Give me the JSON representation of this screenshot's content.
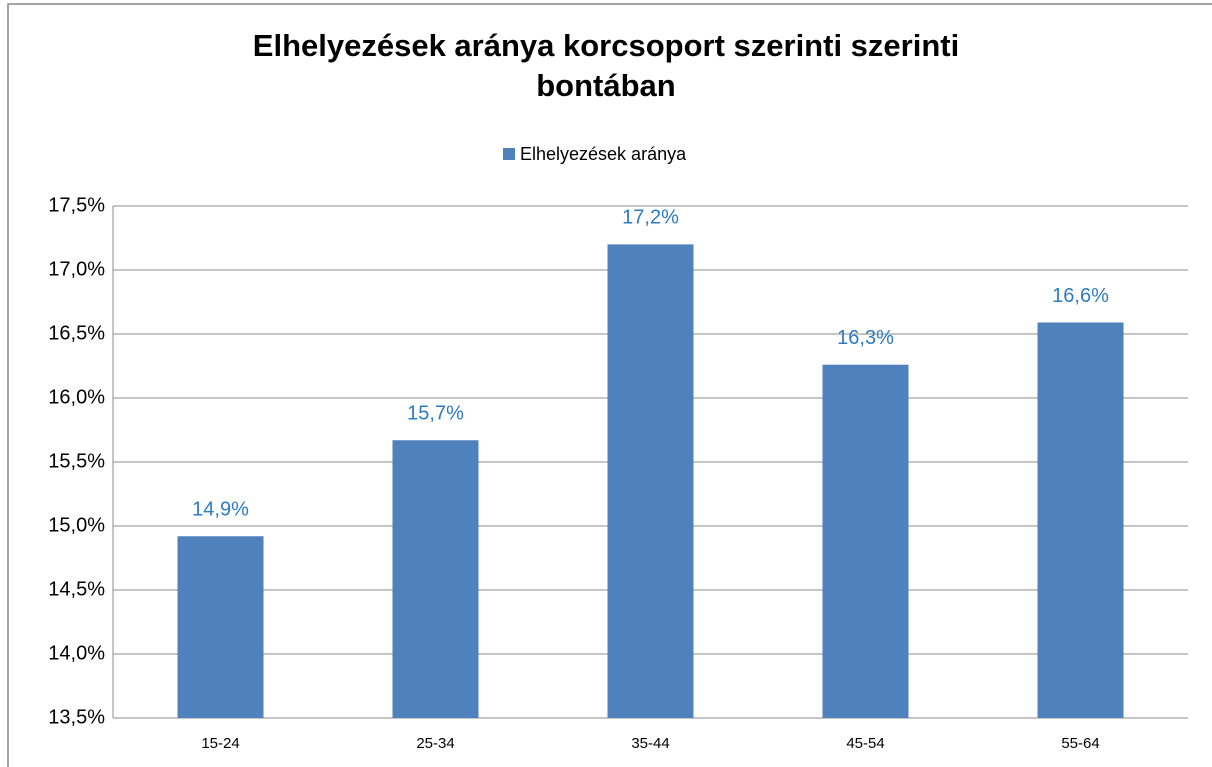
{
  "chart_data": {
    "type": "bar",
    "title": "Elhelyezések aránya korcsoport szerinti szerinti bontában",
    "categories": [
      "15-24",
      "25-34",
      "35-44",
      "45-54",
      "55-64"
    ],
    "series": [
      {
        "name": "Elhelyezések aránya",
        "color": "#4f81bd",
        "values": [
          14.92,
          15.67,
          17.2,
          16.26,
          16.59
        ],
        "value_labels": [
          "14,9%",
          "15,7%",
          "17,2%",
          "16,3%",
          "16,6%"
        ]
      }
    ],
    "ylim": [
      13.5,
      17.5
    ],
    "yticks": [
      {
        "value": 13.5,
        "label": "13,5%"
      },
      {
        "value": 14,
        "label": "14,0%"
      },
      {
        "value": 14.5,
        "label": "14,5%"
      },
      {
        "value": 15,
        "label": "15,0%"
      },
      {
        "value": 15.5,
        "label": "15,5%"
      },
      {
        "value": 16,
        "label": "16,0%"
      },
      {
        "value": 16.5,
        "label": "16,5%"
      },
      {
        "value": 17,
        "label": "17,0%"
      },
      {
        "value": 17.5,
        "label": "17,5%"
      }
    ],
    "grid": true,
    "legend": "top"
  }
}
